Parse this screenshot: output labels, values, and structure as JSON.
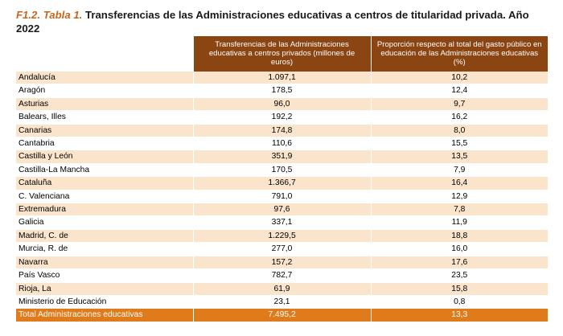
{
  "title": {
    "ref": "F1.2. Tabla 1.",
    "text": " Transferencias de las Administraciones educativas a centros de titularidad privada. Año 2022"
  },
  "table": {
    "headers": [
      "",
      "Transferencias de las Administraciones educativas a centros privados (millones de euros)",
      "Proporción respecto al total del gasto público en educación de las Administraciones educativas (%)"
    ],
    "rows": [
      [
        "Andalucía",
        "1.097,1",
        "10,2"
      ],
      [
        "Aragón",
        "178,5",
        "12,4"
      ],
      [
        "Asturias",
        "96,0",
        "9,7"
      ],
      [
        "Balears, Illes",
        "192,2",
        "16,2"
      ],
      [
        "Canarias",
        "174,8",
        "8,0"
      ],
      [
        "Cantabria",
        "110,6",
        "15,5"
      ],
      [
        "Castilla y León",
        "351,9",
        "13,5"
      ],
      [
        "Castilla-La Mancha",
        "170,5",
        "7,9"
      ],
      [
        "Cataluña",
        "1.366,7",
        "16,4"
      ],
      [
        "C. Valenciana",
        "791,0",
        "12,9"
      ],
      [
        "Extremadura",
        "97,6",
        "7,8"
      ],
      [
        "Galicia",
        "337,1",
        "11,9"
      ],
      [
        "Madrid, C. de",
        "1.229,5",
        "18,8"
      ],
      [
        "Murcia, R. de",
        "277,0",
        "16,0"
      ],
      [
        "Navarra",
        "157,2",
        "17,6"
      ],
      [
        "País Vasco",
        "782,7",
        "23,5"
      ],
      [
        "Rioja, La",
        "61,9",
        "15,8"
      ],
      [
        "Ministerio de Educación",
        "23,1",
        "0,8"
      ]
    ],
    "total": [
      "Total Administraciones educativas",
      "7.495,2",
      "13,3"
    ]
  },
  "colors": {
    "header_bg": "#8b4513",
    "row_highlight": "#fbe4cc",
    "total_bg": "#e07b1c",
    "title_ref": "#c9651a"
  }
}
